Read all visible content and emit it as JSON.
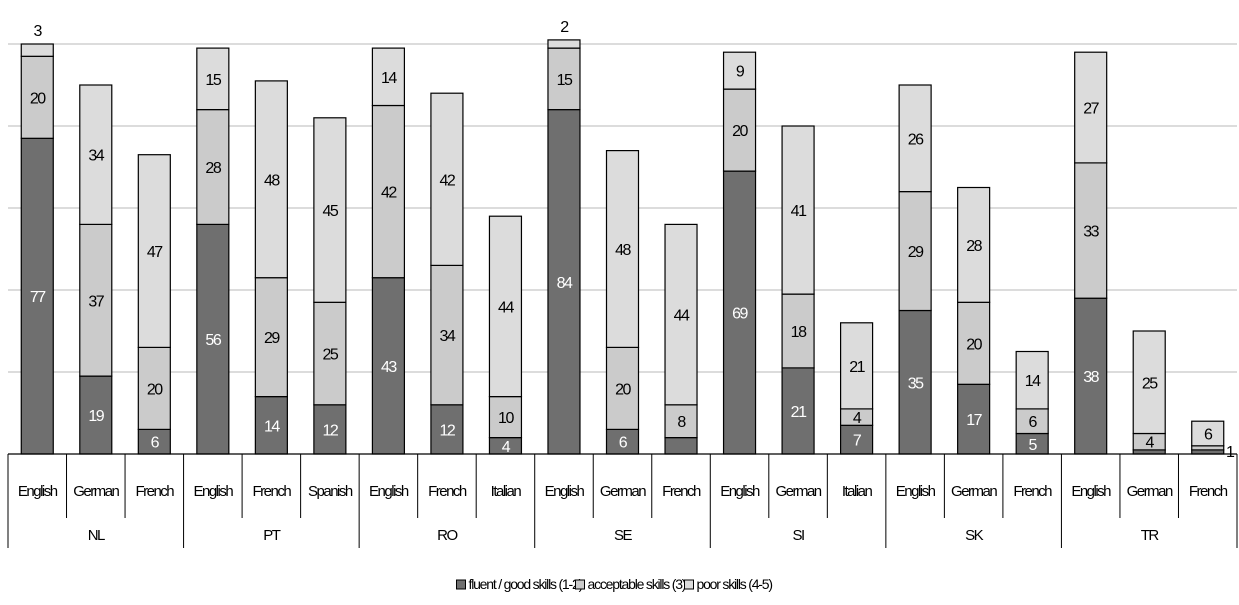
{
  "chart_data": {
    "type": "bar",
    "stacked": true,
    "grid": true,
    "legend_position": "bottom",
    "ylim": [
      0,
      100
    ],
    "colors": {
      "fluent": "#6f6f6f",
      "acceptable": "#cbcbcb",
      "poor": "#dcdcdc",
      "gridline": "#b8b8b8"
    },
    "legend": [
      "fluent / good skills (1-2)",
      "acceptable skills (3)",
      "poor skills (4-5)"
    ],
    "groups": [
      {
        "name": "NL",
        "bars": [
          {
            "lang": "English",
            "values": [
              77,
              20,
              3
            ]
          },
          {
            "lang": "German",
            "values": [
              19,
              37,
              34
            ]
          },
          {
            "lang": "French",
            "values": [
              6,
              20,
              47
            ]
          }
        ]
      },
      {
        "name": "PT",
        "bars": [
          {
            "lang": "English",
            "values": [
              56,
              28,
              15
            ]
          },
          {
            "lang": "French",
            "values": [
              14,
              29,
              48
            ]
          },
          {
            "lang": "Spanish",
            "values": [
              12,
              25,
              45
            ]
          }
        ]
      },
      {
        "name": "RO",
        "bars": [
          {
            "lang": "English",
            "values": [
              43,
              42,
              14
            ]
          },
          {
            "lang": "French",
            "values": [
              12,
              34,
              42
            ]
          },
          {
            "lang": "Italian",
            "values": [
              4,
              10,
              44
            ]
          }
        ]
      },
      {
        "name": "SE",
        "bars": [
          {
            "lang": "English",
            "values": [
              84,
              15,
              2
            ]
          },
          {
            "lang": "German",
            "values": [
              6,
              20,
              48
            ]
          },
          {
            "lang": "French",
            "values": [
              4,
              8,
              44
            ]
          }
        ]
      },
      {
        "name": "SI",
        "bars": [
          {
            "lang": "English",
            "values": [
              69,
              20,
              9
            ]
          },
          {
            "lang": "German",
            "values": [
              21,
              18,
              41
            ]
          },
          {
            "lang": "Italian",
            "values": [
              7,
              4,
              21
            ]
          }
        ]
      },
      {
        "name": "SK",
        "bars": [
          {
            "lang": "English",
            "values": [
              35,
              29,
              26
            ]
          },
          {
            "lang": "German",
            "values": [
              17,
              20,
              28
            ]
          },
          {
            "lang": "French",
            "values": [
              5,
              6,
              14
            ]
          }
        ]
      },
      {
        "name": "TR",
        "bars": [
          {
            "lang": "English",
            "values": [
              38,
              33,
              27
            ]
          },
          {
            "lang": "German",
            "values": [
              1,
              4,
              25
            ]
          },
          {
            "lang": "French",
            "values": [
              1,
              1,
              6
            ]
          }
        ]
      }
    ],
    "segment_labels": {
      "hidden": [
        "SE.French.0",
        "TR.German.0",
        "TR.French.1"
      ],
      "above": [
        "NL.English.2",
        "SE.English.2"
      ],
      "right": [
        "TR.French.0"
      ]
    }
  }
}
